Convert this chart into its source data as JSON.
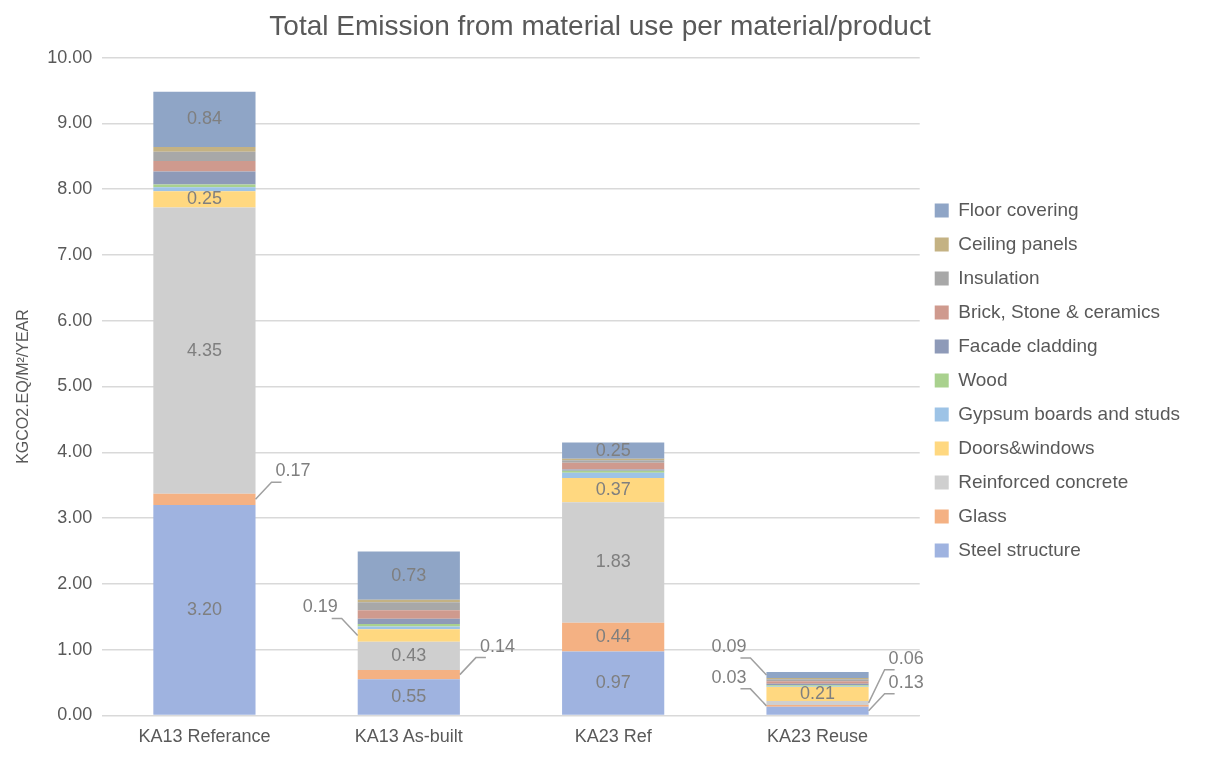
{
  "chart_data": {
    "type": "bar",
    "stacked": true,
    "title": "Total Emission from material use per material/product",
    "ylabel": "KGCO2.EQ/M²/YEAR",
    "categories": [
      "KA13 Referance",
      "KA13 As-built",
      "KA23 Ref",
      "KA23 Reuse"
    ],
    "series": [
      {
        "name": "Steel structure",
        "color": "#9fb3e0",
        "values": [
          3.2,
          0.55,
          0.97,
          0.13
        ],
        "value_labels": [
          "3.20",
          "0.55",
          "0.97",
          "0.13"
        ]
      },
      {
        "name": "Glass",
        "color": "#f4b183",
        "values": [
          0.17,
          0.14,
          0.44,
          0.03
        ],
        "value_labels": [
          "0.17",
          "0.14",
          "0.44",
          "0.03"
        ]
      },
      {
        "name": "Reinforced concrete",
        "color": "#cfcfcf",
        "values": [
          4.35,
          0.43,
          1.83,
          0.06
        ],
        "value_labels": [
          "4.35",
          "0.43",
          "1.83",
          "0.06"
        ]
      },
      {
        "name": "Doors&windows",
        "color": "#ffd880",
        "values": [
          0.25,
          0.19,
          0.37,
          0.21
        ],
        "value_labels": [
          "0.25",
          "0.19",
          "0.37",
          "0.21"
        ]
      },
      {
        "name": "Gypsum boards and studs",
        "color": "#9dc3e6",
        "values": [
          0.06,
          0.04,
          0.08,
          0.01
        ]
      },
      {
        "name": "Wood",
        "color": "#a9d18e",
        "values": [
          0.04,
          0.04,
          0.03,
          0.02
        ]
      },
      {
        "name": "Facade cladding",
        "color": "#8e9ab8",
        "values": [
          0.2,
          0.08,
          0.02,
          0.02
        ]
      },
      {
        "name": "Brick, Stone & ceramics",
        "color": "#cf9a8e",
        "values": [
          0.16,
          0.13,
          0.1,
          0.04
        ]
      },
      {
        "name": "Insulation",
        "color": "#a8a8a8",
        "values": [
          0.14,
          0.12,
          0.04,
          0.03
        ]
      },
      {
        "name": "Ceiling panels",
        "color": "#c4b283",
        "values": [
          0.07,
          0.04,
          0.02,
          0.02
        ]
      },
      {
        "name": "Floor covering",
        "color": "#8fa5c6",
        "values": [
          0.84,
          0.73,
          0.25,
          0.09
        ],
        "value_labels": [
          "0.84",
          "0.73",
          "0.25",
          "0.09"
        ]
      }
    ],
    "ylim": [
      0,
      10
    ],
    "yticks": [
      {
        "value": 0,
        "label": "0.00"
      },
      {
        "value": 1,
        "label": "1.00"
      },
      {
        "value": 2,
        "label": "2.00"
      },
      {
        "value": 3,
        "label": "3.00"
      },
      {
        "value": 4,
        "label": "4.00"
      },
      {
        "value": 5,
        "label": "5.00"
      },
      {
        "value": 6,
        "label": "6.00"
      },
      {
        "value": 7,
        "label": "7.00"
      },
      {
        "value": 8,
        "label": "8.00"
      },
      {
        "value": 9,
        "label": "9.00"
      },
      {
        "value": 10,
        "label": "10.00"
      }
    ],
    "grid": "y",
    "legend": "right"
  }
}
